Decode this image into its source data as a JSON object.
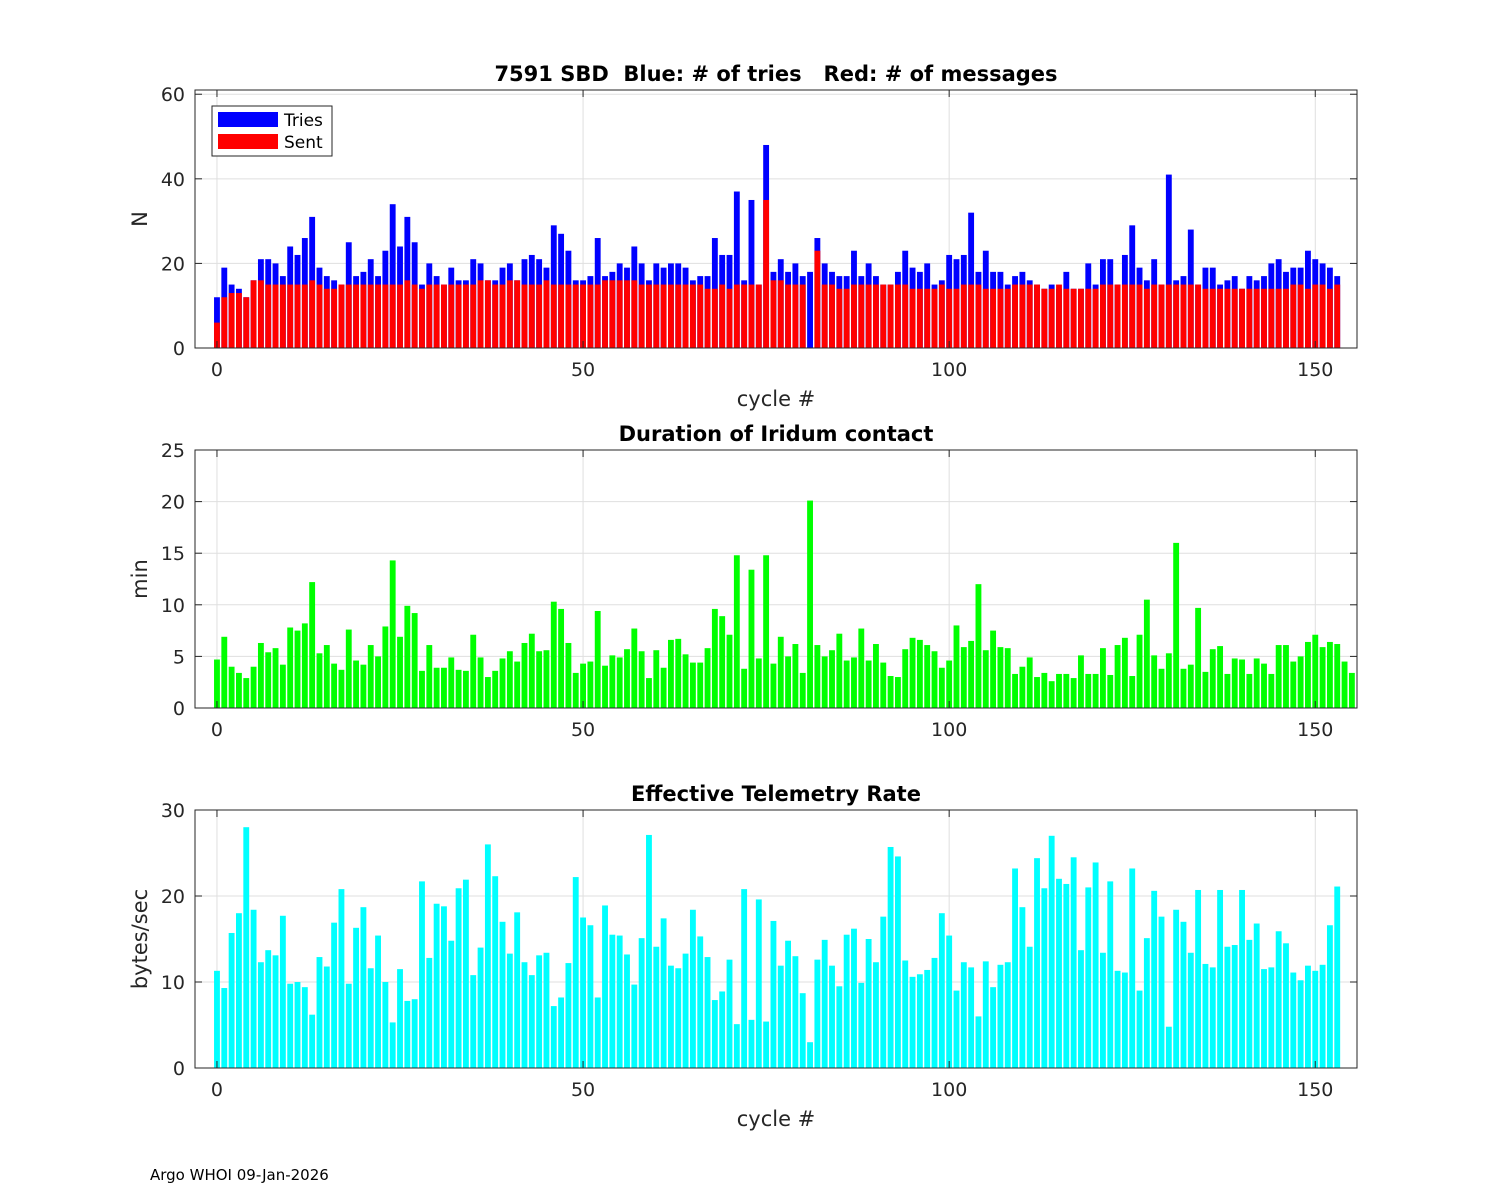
{
  "chart_data": [
    {
      "type": "bar",
      "title": "7591 SBD  Blue: # of tries   Red: # of messages",
      "xlabel": "cycle #",
      "ylabel": "N",
      "xlim": [
        -3,
        155.7
      ],
      "ylim": [
        0,
        61
      ],
      "xticks": [
        0,
        50,
        100,
        150
      ],
      "yticks": [
        0,
        20,
        40,
        60
      ],
      "grid": true,
      "legend": {
        "placement": "top-left",
        "entries": [
          "Tries",
          "Sent"
        ]
      },
      "x_start": 0,
      "series": [
        {
          "name": "Tries",
          "color": "#0000ff",
          "values": [
            12,
            19,
            15,
            14,
            12,
            16,
            21,
            21,
            20,
            17,
            24,
            22,
            26,
            31,
            19,
            17,
            16,
            15,
            25,
            17,
            18,
            21,
            17,
            23,
            34,
            24,
            31,
            25,
            15,
            20,
            17,
            15,
            19,
            16,
            16,
            21,
            20,
            16,
            16,
            19,
            20,
            16,
            21,
            22,
            21,
            19,
            29,
            27,
            23,
            16,
            16,
            17,
            26,
            17,
            18,
            20,
            19,
            24,
            20,
            16,
            20,
            19,
            20,
            20,
            19,
            16,
            17,
            17,
            26,
            22,
            22,
            37,
            16,
            35,
            15,
            48,
            18,
            21,
            18,
            20,
            17,
            18,
            26,
            20,
            18,
            17,
            17,
            23,
            17,
            20,
            17,
            15,
            15,
            18,
            23,
            19,
            18,
            20,
            15,
            16,
            22,
            21,
            22,
            32,
            18,
            23,
            18,
            18,
            15,
            17,
            18,
            16,
            15,
            14,
            15,
            14,
            18,
            14,
            14,
            20,
            15,
            21,
            21,
            15,
            22,
            29,
            19,
            16,
            21,
            15,
            41,
            16,
            17,
            28,
            15,
            19,
            19,
            15,
            16,
            17,
            14,
            17,
            16,
            17,
            20,
            21,
            18,
            19,
            19,
            23,
            21,
            20,
            19,
            17
          ]
        },
        {
          "name": "Sent",
          "color": "#ff0000",
          "values": [
            6,
            12,
            13,
            13,
            12,
            16,
            16,
            15,
            15,
            15,
            15,
            15,
            15,
            16,
            15,
            14,
            14,
            15,
            15,
            15,
            15,
            15,
            15,
            15,
            15,
            15,
            16,
            15,
            14,
            15,
            15,
            15,
            15,
            15,
            15,
            15,
            16,
            16,
            15,
            15,
            16,
            16,
            15,
            15,
            15,
            16,
            15,
            15,
            15,
            15,
            15,
            15,
            15,
            16,
            16,
            16,
            16,
            16,
            15,
            15,
            15,
            15,
            15,
            15,
            15,
            15,
            15,
            14,
            14,
            15,
            14,
            15,
            15,
            15,
            15,
            35,
            16,
            16,
            15,
            15,
            15,
            0,
            23,
            15,
            15,
            14,
            14,
            15,
            15,
            15,
            15,
            15,
            15,
            15,
            15,
            14,
            14,
            14,
            14,
            15,
            14,
            14,
            15,
            15,
            15,
            14,
            14,
            14,
            14,
            15,
            15,
            15,
            15,
            14,
            14,
            15,
            14,
            14,
            14,
            14,
            14,
            15,
            15,
            15,
            15,
            15,
            15,
            14,
            15,
            15,
            15,
            15,
            15,
            15,
            15,
            14,
            14,
            14,
            14,
            14,
            14,
            14,
            14,
            14,
            14,
            14,
            14,
            15,
            15,
            14,
            15,
            15,
            14,
            15
          ]
        }
      ]
    },
    {
      "type": "bar",
      "title": "Duration of Iridum contact",
      "xlabel": "",
      "ylabel": "min",
      "xlim": [
        -3,
        155.7
      ],
      "ylim": [
        0,
        25
      ],
      "xticks": [
        0,
        50,
        100,
        150
      ],
      "yticks": [
        0,
        5,
        10,
        15,
        20,
        25
      ],
      "grid": true,
      "x_start": 0,
      "series": [
        {
          "name": "",
          "color": "#00ff00",
          "values": [
            4.7,
            6.9,
            4.0,
            3.4,
            2.9,
            4.0,
            6.3,
            5.4,
            5.8,
            4.2,
            7.8,
            7.5,
            8.2,
            12.2,
            5.3,
            6.1,
            4.3,
            3.7,
            7.6,
            4.6,
            4.2,
            6.1,
            5.0,
            7.9,
            14.3,
            6.9,
            9.9,
            9.2,
            3.6,
            6.1,
            3.9,
            3.9,
            4.9,
            3.7,
            3.6,
            7.1,
            4.9,
            3.0,
            3.6,
            4.8,
            5.5,
            4.5,
            6.3,
            7.2,
            5.5,
            5.6,
            10.3,
            9.6,
            6.3,
            3.4,
            4.3,
            4.5,
            9.4,
            4.1,
            5.1,
            4.9,
            5.7,
            7.7,
            5.5,
            2.9,
            5.6,
            3.9,
            6.6,
            6.7,
            5.2,
            4.4,
            4.4,
            5.8,
            9.6,
            8.9,
            7.1,
            14.8,
            3.8,
            13.4,
            4.8,
            14.8,
            4.3,
            6.9,
            5.0,
            6.2,
            3.4,
            20.1,
            6.1,
            5.0,
            5.6,
            7.2,
            4.6,
            4.9,
            7.7,
            4.6,
            6.2,
            4.4,
            3.1,
            3.0,
            5.7,
            6.8,
            6.6,
            6.1,
            5.5,
            3.9,
            4.6,
            8.0,
            5.9,
            6.5,
            12.0,
            5.6,
            7.5,
            5.9,
            5.8,
            3.3,
            4.0,
            4.9,
            3.0,
            3.4,
            2.6,
            3.3,
            3.3,
            2.9,
            5.1,
            3.3,
            3.3,
            5.8,
            3.2,
            6.1,
            6.8,
            3.1,
            7.1,
            10.5,
            5.1,
            3.8,
            5.3,
            16.0,
            3.8,
            4.2,
            9.7,
            3.5,
            5.7,
            6.0,
            3.3,
            4.8,
            4.7,
            3.3,
            4.8,
            4.3,
            3.3,
            6.1,
            6.1,
            4.5,
            5.0,
            6.4,
            7.1,
            5.9,
            6.4,
            6.2,
            4.5,
            3.4
          ]
        }
      ]
    },
    {
      "type": "bar",
      "title": "Effective Telemetry Rate",
      "xlabel": "cycle #",
      "ylabel": "bytes/sec",
      "xlim": [
        -3,
        155.7
      ],
      "ylim": [
        0,
        30
      ],
      "xticks": [
        0,
        50,
        100,
        150
      ],
      "yticks": [
        0,
        10,
        20,
        30
      ],
      "grid": true,
      "x_start": 0,
      "series": [
        {
          "name": "",
          "color": "#00ffff",
          "values": [
            11.3,
            9.3,
            15.7,
            18.0,
            28.0,
            18.4,
            12.3,
            13.7,
            13.1,
            17.7,
            9.8,
            10.0,
            9.4,
            6.2,
            12.9,
            11.8,
            16.9,
            20.8,
            9.8,
            16.3,
            18.7,
            11.6,
            15.4,
            10.0,
            5.3,
            11.5,
            7.8,
            8.0,
            21.7,
            12.8,
            19.1,
            18.8,
            14.8,
            20.9,
            21.9,
            10.8,
            14.0,
            26.0,
            22.3,
            17.0,
            13.3,
            18.1,
            12.3,
            10.8,
            13.1,
            13.4,
            7.2,
            8.2,
            12.2,
            22.2,
            17.5,
            16.6,
            8.2,
            18.9,
            15.5,
            15.4,
            13.2,
            9.7,
            15.1,
            27.1,
            14.1,
            17.4,
            11.9,
            11.6,
            13.3,
            18.4,
            15.3,
            12.9,
            7.9,
            8.9,
            12.6,
            5.1,
            20.8,
            5.6,
            19.6,
            5.4,
            17.1,
            11.9,
            14.8,
            13.0,
            8.7,
            3.0,
            12.6,
            14.9,
            11.9,
            9.5,
            15.5,
            16.2,
            9.9,
            15.0,
            12.3,
            17.6,
            25.7,
            24.6,
            12.5,
            10.6,
            10.9,
            11.4,
            12.8,
            18.0,
            15.4,
            9.0,
            12.3,
            11.7,
            6.0,
            12.4,
            9.4,
            12.0,
            12.3,
            23.2,
            18.7,
            14.1,
            24.4,
            20.9,
            27.0,
            22.0,
            21.4,
            24.5,
            13.7,
            21.0,
            23.9,
            13.4,
            21.7,
            11.3,
            11.1,
            23.2,
            9.0,
            15.1,
            20.6,
            17.6,
            4.8,
            18.4,
            17.0,
            13.4,
            20.7,
            12.1,
            11.7,
            20.7,
            14.1,
            14.3,
            20.7,
            14.9,
            16.8,
            11.5,
            11.7,
            15.9,
            14.5,
            11.1,
            10.2,
            11.9,
            11.3,
            12.0,
            16.6,
            21.1
          ]
        }
      ]
    }
  ],
  "footer": "Argo WHOI 09-Jan-2026"
}
